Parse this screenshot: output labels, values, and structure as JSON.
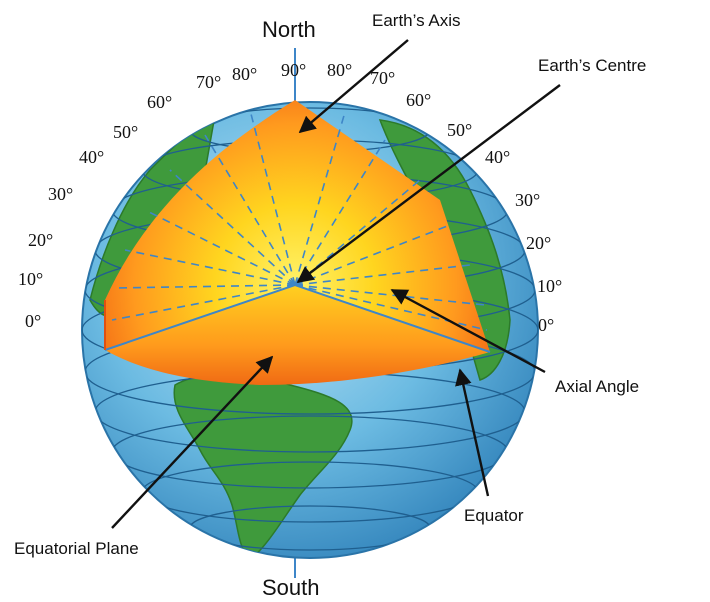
{
  "poles": {
    "north": "North",
    "south": "South"
  },
  "labels": {
    "earth_axis": "Earth’s Axis",
    "earth_centre": "Earth’s Centre",
    "axial_angle": "Axial Angle",
    "equator": "Equator",
    "equatorial_plane": "Equatorial Plane"
  },
  "latitude_left": [
    "70°",
    "80°",
    "60°",
    "50°",
    "40°",
    "30°",
    "20°",
    "10°",
    "0°"
  ],
  "latitude_top": "90°",
  "latitude_right": [
    "80°",
    "70°",
    "60°",
    "50°",
    "40°",
    "30°",
    "20°",
    "10°",
    "0°"
  ],
  "colors": {
    "ocean": "#5fb3dc",
    "ocean_dark": "#2f86bf",
    "land": "#3f9a3c",
    "core_outer": "#ee5a12",
    "core_inner": "#ffe23a",
    "guide_lines": "#3e86c8",
    "arrows": "#111111"
  }
}
